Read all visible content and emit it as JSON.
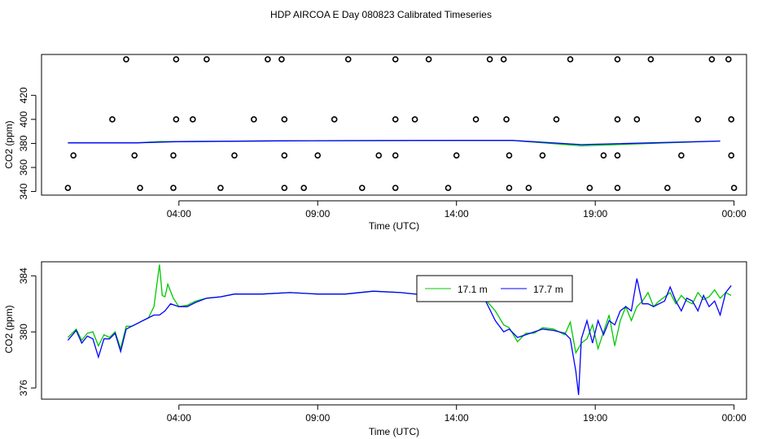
{
  "chart_data": [
    {
      "type": "scatter",
      "title": "HDP AIRCOA E  Day 080823  Calibrated Timeseries",
      "xlabel": "Time (UTC)",
      "ylabel": "CO2 (ppm)",
      "x_ticks": [
        "04:00",
        "09:00",
        "14:00",
        "19:00",
        "00:00"
      ],
      "y_ticks": [
        "340",
        "360",
        "380",
        "400",
        "420"
      ],
      "xlim_hours": [
        -0.95,
        24.45
      ],
      "ylim": [
        337,
        454
      ],
      "marker_rows_ppm": [
        450,
        400,
        370,
        343
      ],
      "markers_row_450_hours": [
        2.1,
        3.9,
        5.0,
        7.2,
        7.7,
        10.1,
        11.8,
        13.0,
        15.2,
        15.7,
        18.1,
        19.8,
        21.0,
        23.2,
        23.8
      ],
      "markers_row_400_hours": [
        1.6,
        3.9,
        4.5,
        6.7,
        7.8,
        9.6,
        11.8,
        12.5,
        14.7,
        15.8,
        17.6,
        19.8,
        20.5,
        22.7,
        23.9
      ],
      "markers_row_370_hours": [
        0.2,
        2.4,
        3.8,
        6.0,
        7.8,
        9.0,
        11.2,
        11.8,
        14.0,
        15.9,
        17.1,
        19.3,
        19.8,
        22.1,
        23.9
      ],
      "markers_row_343_hours": [
        0.0,
        2.6,
        3.8,
        5.5,
        7.8,
        8.5,
        10.6,
        11.8,
        13.7,
        15.9,
        16.6,
        18.8,
        19.8,
        21.6,
        24.0
      ],
      "series": [
        {
          "color": "#00c800",
          "x": [
            0.0,
            2.5,
            3.3,
            4.0,
            8.0,
            14.0,
            16.0,
            18.5,
            23.5
          ],
          "values": [
            380.5,
            380.5,
            381.5,
            381.5,
            382.2,
            382.5,
            382.5,
            378.0,
            382.0
          ]
        },
        {
          "color": "#0000ff",
          "x": [
            0.0,
            2.5,
            4.0,
            8.0,
            14.0,
            16.0,
            18.5,
            23.5
          ],
          "values": [
            380.5,
            380.5,
            381.5,
            382.2,
            382.5,
            382.5,
            379.0,
            382.0
          ]
        }
      ]
    },
    {
      "type": "line",
      "xlabel": "Time (UTC)",
      "ylabel": "CO2 (ppm)",
      "x_ticks": [
        "04:00",
        "09:00",
        "14:00",
        "19:00",
        "00:00"
      ],
      "y_ticks": [
        "376",
        "380",
        "384"
      ],
      "xlim_hours": [
        -0.95,
        24.45
      ],
      "ylim": [
        375.2,
        385.0
      ],
      "legend": "top-right",
      "series": [
        {
          "name": "17.1 m",
          "color": "#00c800",
          "x": [
            0.0,
            0.3,
            0.5,
            0.7,
            0.9,
            1.1,
            1.3,
            1.5,
            1.7,
            1.9,
            2.1,
            2.3,
            2.5,
            2.7,
            2.9,
            3.1,
            3.3,
            3.4,
            3.5,
            3.6,
            3.8,
            4.0,
            4.3,
            4.6,
            5.0,
            5.5,
            6.0,
            7.0,
            8.0,
            9.0,
            10.0,
            11.0,
            12.0,
            13.0,
            14.0,
            15.0,
            15.4,
            15.7,
            15.9,
            16.2,
            16.5,
            16.8,
            17.1,
            17.5,
            17.9,
            18.1,
            18.3,
            18.5,
            18.7,
            18.9,
            19.1,
            19.3,
            19.5,
            19.7,
            19.9,
            20.1,
            20.3,
            20.5,
            20.7,
            20.9,
            21.1,
            21.3,
            21.5,
            21.7,
            21.9,
            22.1,
            22.3,
            22.5,
            22.7,
            22.9,
            23.1,
            23.3,
            23.5,
            23.7,
            23.9
          ],
          "values": [
            379.6,
            380.2,
            379.4,
            379.9,
            380.0,
            379.0,
            379.8,
            379.6,
            380.0,
            378.8,
            380.4,
            380.4,
            380.6,
            380.8,
            381.0,
            381.8,
            384.8,
            382.6,
            382.5,
            383.4,
            382.4,
            381.8,
            381.9,
            382.2,
            382.4,
            382.5,
            382.7,
            382.7,
            382.8,
            382.7,
            382.7,
            382.9,
            382.8,
            382.6,
            382.4,
            382.4,
            381.5,
            380.5,
            380.3,
            379.3,
            379.9,
            379.9,
            380.3,
            380.2,
            379.8,
            380.7,
            378.5,
            379.2,
            379.5,
            380.5,
            378.8,
            380.0,
            381.2,
            379.0,
            380.8,
            381.8,
            380.8,
            381.8,
            382.2,
            382.8,
            381.8,
            382.2,
            382.5,
            382.8,
            382.0,
            382.6,
            382.2,
            382.0,
            382.8,
            382.3,
            382.5,
            383.0,
            382.4,
            382.8,
            382.6
          ]
        },
        {
          "name": "17.7 m",
          "color": "#0000ff",
          "x": [
            0.0,
            0.3,
            0.5,
            0.7,
            0.9,
            1.1,
            1.3,
            1.5,
            1.7,
            1.9,
            2.1,
            2.3,
            2.5,
            2.7,
            2.9,
            3.1,
            3.3,
            3.5,
            3.7,
            4.0,
            4.3,
            4.6,
            5.0,
            5.5,
            6.0,
            7.0,
            8.0,
            9.0,
            10.0,
            11.0,
            12.0,
            13.0,
            14.0,
            15.0,
            15.4,
            15.7,
            15.9,
            16.2,
            16.5,
            16.8,
            17.1,
            17.5,
            17.9,
            18.1,
            18.3,
            18.4,
            18.5,
            18.7,
            18.9,
            19.1,
            19.3,
            19.5,
            19.7,
            19.9,
            20.1,
            20.3,
            20.5,
            20.7,
            20.9,
            21.1,
            21.3,
            21.5,
            21.7,
            21.9,
            22.1,
            22.3,
            22.5,
            22.7,
            22.9,
            23.1,
            23.3,
            23.5,
            23.7,
            23.9
          ],
          "values": [
            379.4,
            380.1,
            379.2,
            379.7,
            379.5,
            378.2,
            379.5,
            379.5,
            379.9,
            378.6,
            380.2,
            380.4,
            380.6,
            380.8,
            381.0,
            381.2,
            381.2,
            381.5,
            382.0,
            381.8,
            381.8,
            382.1,
            382.4,
            382.5,
            382.7,
            382.7,
            382.8,
            382.7,
            382.7,
            382.9,
            382.8,
            382.6,
            382.4,
            382.4,
            380.8,
            380.0,
            380.2,
            379.6,
            379.8,
            380.0,
            380.2,
            380.1,
            379.9,
            379.5,
            377.2,
            375.5,
            379.5,
            380.8,
            379.2,
            380.8,
            379.8,
            380.8,
            380.5,
            381.5,
            381.8,
            381.5,
            383.8,
            382.0,
            382.0,
            381.8,
            382.0,
            382.2,
            383.2,
            382.2,
            381.5,
            382.4,
            382.2,
            381.5,
            382.6,
            381.8,
            382.2,
            381.2,
            382.8,
            383.3
          ]
        }
      ]
    }
  ]
}
